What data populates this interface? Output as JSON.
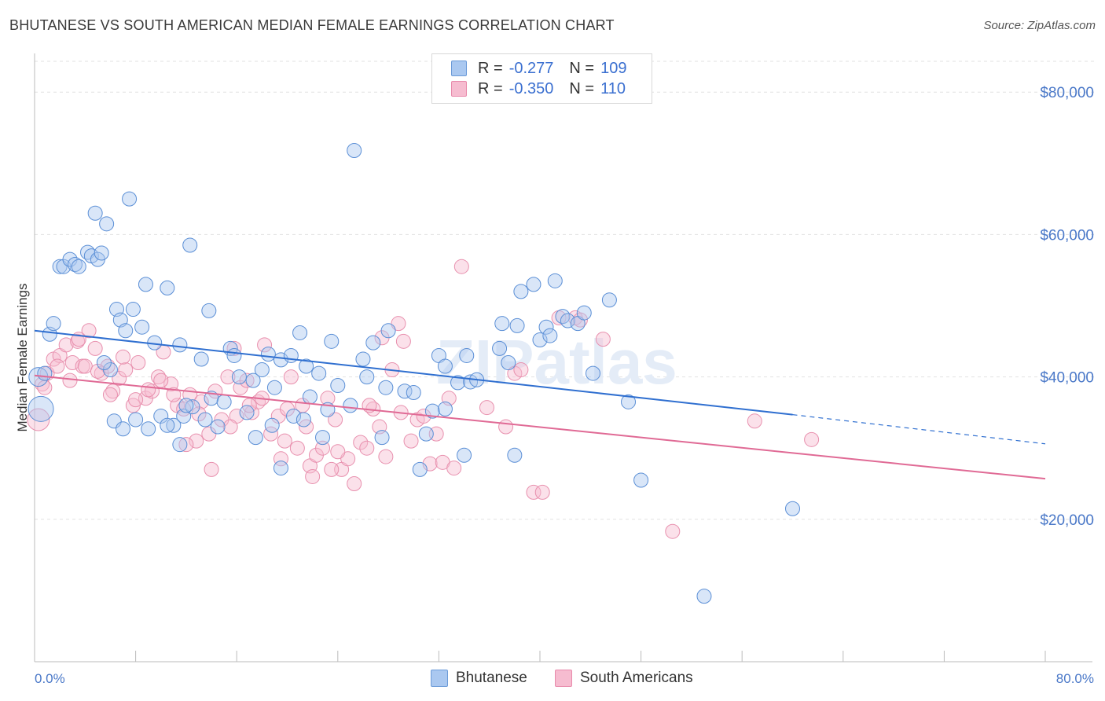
{
  "title": "BHUTANESE VS SOUTH AMERICAN MEDIAN FEMALE EARNINGS CORRELATION CHART",
  "source": "Source: ZipAtlas.com",
  "watermark": "ZIPatlas",
  "legend": {
    "rows": [
      {
        "r_label": "R =",
        "r_value": "-0.277",
        "n_label": "N =",
        "n_value": "109",
        "color": "#aac8f0",
        "border": "#6a9ad8"
      },
      {
        "r_label": "R =",
        "r_value": "-0.350",
        "n_label": "N =",
        "n_value": "110",
        "color": "#f6bcd0",
        "border": "#e88aab"
      }
    ]
  },
  "bottom_legend": [
    "Bhutanese",
    "South Americans"
  ],
  "chart_data": {
    "type": "scatter",
    "title": "BHUTANESE VS SOUTH AMERICAN MEDIAN FEMALE EARNINGS CORRELATION CHART",
    "ylabel": "Median Female Earnings",
    "xlim": [
      0,
      80
    ],
    "ylim": [
      0,
      84000
    ],
    "y_ticks": [
      20000,
      40000,
      60000,
      80000
    ],
    "y_tick_labels": [
      "$20,000",
      "$40,000",
      "$60,000",
      "$80,000"
    ],
    "x_tick_labels": [
      "0.0%",
      "80.0%"
    ],
    "grid": true,
    "series": [
      {
        "name": "Bhutanese",
        "color": "#5b8fd6",
        "fill": "#aac8f0",
        "line_color": "#2f6fd0",
        "trend": {
          "x0": 0,
          "y0": 46500,
          "x1": 60,
          "y1": 34700,
          "dash_to_x": 80,
          "dash_to_y": 30600
        },
        "points": [
          [
            0.3,
            40000
          ],
          [
            0.8,
            40500
          ],
          [
            1.2,
            46000
          ],
          [
            1.5,
            47500
          ],
          [
            2,
            55500
          ],
          [
            2.3,
            55500
          ],
          [
            2.8,
            56500
          ],
          [
            3.2,
            55800
          ],
          [
            3.5,
            55500
          ],
          [
            4.2,
            57500
          ],
          [
            4.5,
            57000
          ],
          [
            5,
            56500
          ],
          [
            5.3,
            57400
          ],
          [
            4.8,
            63000
          ],
          [
            5.7,
            61500
          ],
          [
            7.5,
            65000
          ],
          [
            6.5,
            49500
          ],
          [
            6.8,
            48000
          ],
          [
            7.2,
            46500
          ],
          [
            7.8,
            49500
          ],
          [
            8.5,
            47000
          ],
          [
            8.8,
            53000
          ],
          [
            9.5,
            44800
          ],
          [
            10.5,
            52500
          ],
          [
            11.5,
            44500
          ],
          [
            12.3,
            58500
          ],
          [
            13.2,
            42500
          ],
          [
            13.8,
            49300
          ],
          [
            15.5,
            44000
          ],
          [
            15.8,
            43000
          ],
          [
            16.2,
            40000
          ],
          [
            17.3,
            39500
          ],
          [
            18,
            41000
          ],
          [
            18.5,
            43200
          ],
          [
            19,
            38500
          ],
          [
            19.5,
            42400
          ],
          [
            20.3,
            43000
          ],
          [
            21,
            46200
          ],
          [
            21.5,
            41500
          ],
          [
            22.5,
            40500
          ],
          [
            23.5,
            45000
          ],
          [
            24,
            38800
          ],
          [
            25.3,
            71800
          ],
          [
            26.3,
            40000
          ],
          [
            26.8,
            44800
          ],
          [
            27.8,
            38500
          ],
          [
            29.3,
            38000
          ],
          [
            30,
            37800
          ],
          [
            31.5,
            35200
          ],
          [
            32,
            43000
          ],
          [
            32.5,
            41500
          ],
          [
            33.5,
            39200
          ],
          [
            34.2,
            43000
          ],
          [
            34.5,
            39300
          ],
          [
            35,
            39600
          ],
          [
            36.8,
            44000
          ],
          [
            37,
            47500
          ],
          [
            37.5,
            42000
          ],
          [
            38.2,
            47200
          ],
          [
            38.5,
            52000
          ],
          [
            39.5,
            53000
          ],
          [
            40,
            45200
          ],
          [
            40.5,
            47000
          ],
          [
            40.8,
            45800
          ],
          [
            41.2,
            53500
          ],
          [
            41.8,
            48500
          ],
          [
            42.2,
            47900
          ],
          [
            43,
            47500
          ],
          [
            43.5,
            49000
          ],
          [
            45.5,
            50800
          ],
          [
            44.2,
            40500
          ],
          [
            47,
            36500
          ],
          [
            48,
            25500
          ],
          [
            9,
            32700
          ],
          [
            10,
            34500
          ],
          [
            11,
            33200
          ],
          [
            11.8,
            34500
          ],
          [
            12.5,
            35800
          ],
          [
            13.5,
            34000
          ],
          [
            14,
            37000
          ],
          [
            8,
            34000
          ],
          [
            6,
            41000
          ],
          [
            5.5,
            42000
          ],
          [
            14.5,
            33000
          ],
          [
            15,
            36500
          ],
          [
            16.8,
            35000
          ],
          [
            17.5,
            31500
          ],
          [
            18.8,
            33200
          ],
          [
            19.5,
            27200
          ],
          [
            20.5,
            34500
          ],
          [
            21.3,
            34000
          ],
          [
            21.8,
            37200
          ],
          [
            22.8,
            31500
          ],
          [
            23.2,
            35400
          ],
          [
            25,
            36000
          ],
          [
            27.5,
            31500
          ],
          [
            30.5,
            27000
          ],
          [
            31,
            32000
          ],
          [
            32.5,
            35500
          ],
          [
            34,
            29000
          ],
          [
            38,
            29000
          ],
          [
            10.5,
            33200
          ],
          [
            11.5,
            30500
          ],
          [
            6.3,
            33800
          ],
          [
            7,
            32700
          ],
          [
            0.5,
            35500
          ],
          [
            60,
            21500
          ],
          [
            53,
            9200
          ],
          [
            28,
            46500
          ],
          [
            26,
            42500
          ],
          [
            12,
            36000
          ]
        ],
        "sizes_note": "most markers similar size; one large marker near x=0.3"
      },
      {
        "name": "South Americans",
        "color": "#e890ae",
        "fill": "#f6bcd0",
        "line_color": "#e06a95",
        "trend": {
          "x0": 0,
          "y0": 40200,
          "x1": 80,
          "y1": 25700
        },
        "points": [
          [
            0.3,
            34000
          ],
          [
            0.6,
            39000
          ],
          [
            1,
            40500
          ],
          [
            1.5,
            42500
          ],
          [
            2,
            43000
          ],
          [
            2.5,
            44500
          ],
          [
            3,
            42000
          ],
          [
            3.4,
            45000
          ],
          [
            3.8,
            41500
          ],
          [
            4.3,
            46500
          ],
          [
            4.8,
            44000
          ],
          [
            5.3,
            40500
          ],
          [
            5.8,
            41500
          ],
          [
            6.2,
            38000
          ],
          [
            6.7,
            39800
          ],
          [
            7.2,
            41000
          ],
          [
            7.8,
            36000
          ],
          [
            8.2,
            42000
          ],
          [
            8.8,
            37000
          ],
          [
            9.3,
            38000
          ],
          [
            9.8,
            40000
          ],
          [
            10.2,
            43500
          ],
          [
            10.8,
            39000
          ],
          [
            11.3,
            36000
          ],
          [
            11.8,
            35500
          ],
          [
            12.3,
            37500
          ],
          [
            12.8,
            31000
          ],
          [
            13.2,
            36500
          ],
          [
            13.8,
            32000
          ],
          [
            14.3,
            38000
          ],
          [
            14.8,
            34000
          ],
          [
            15.3,
            40000
          ],
          [
            15.8,
            44000
          ],
          [
            16.3,
            38500
          ],
          [
            16.8,
            39500
          ],
          [
            17.2,
            35000
          ],
          [
            17.7,
            36500
          ],
          [
            18.2,
            44500
          ],
          [
            18.7,
            32000
          ],
          [
            19.3,
            34500
          ],
          [
            19.8,
            31000
          ],
          [
            20.3,
            40000
          ],
          [
            20.8,
            30000
          ],
          [
            21.2,
            36000
          ],
          [
            21.8,
            27500
          ],
          [
            22.3,
            29000
          ],
          [
            22.8,
            30000
          ],
          [
            23.2,
            37000
          ],
          [
            23.8,
            34000
          ],
          [
            24.3,
            27000
          ],
          [
            24.8,
            28500
          ],
          [
            25.3,
            25000
          ],
          [
            25.8,
            30800
          ],
          [
            26.3,
            30000
          ],
          [
            26.8,
            35500
          ],
          [
            27.3,
            33000
          ],
          [
            27.8,
            28800
          ],
          [
            28.3,
            41000
          ],
          [
            28.8,
            47500
          ],
          [
            29.2,
            45000
          ],
          [
            29.8,
            31000
          ],
          [
            30.3,
            34000
          ],
          [
            30.8,
            34500
          ],
          [
            31.3,
            27800
          ],
          [
            31.8,
            32000
          ],
          [
            32.3,
            28000
          ],
          [
            32.8,
            37000
          ],
          [
            33.2,
            27200
          ],
          [
            33.8,
            55500
          ],
          [
            12,
            30500
          ],
          [
            14,
            27000
          ],
          [
            16,
            34500
          ],
          [
            18,
            37000
          ],
          [
            20,
            35500
          ],
          [
            22,
            26000
          ],
          [
            24,
            29500
          ],
          [
            10,
            39500
          ],
          [
            8,
            36800
          ],
          [
            6,
            37500
          ],
          [
            4,
            41500
          ],
          [
            2.8,
            39500
          ],
          [
            38,
            40500
          ],
          [
            38.5,
            41000
          ],
          [
            39.5,
            23800
          ],
          [
            40.2,
            23800
          ],
          [
            42.8,
            48300
          ],
          [
            43.2,
            48000
          ],
          [
            45,
            45300
          ],
          [
            41.5,
            48300
          ],
          [
            50.5,
            18300
          ],
          [
            57,
            33800
          ],
          [
            61.5,
            31200
          ],
          [
            27.5,
            45500
          ],
          [
            26.5,
            36000
          ],
          [
            29,
            35000
          ],
          [
            19.5,
            28500
          ],
          [
            23.5,
            27000
          ],
          [
            21.5,
            33000
          ],
          [
            15.5,
            33000
          ],
          [
            17,
            36000
          ],
          [
            11,
            37500
          ],
          [
            13,
            34800
          ],
          [
            9,
            38200
          ],
          [
            7,
            42800
          ],
          [
            5,
            40800
          ],
          [
            3.5,
            45300
          ],
          [
            1.8,
            41500
          ],
          [
            0.8,
            38500
          ],
          [
            35.8,
            35700
          ],
          [
            37.3,
            33000
          ]
        ]
      }
    ]
  }
}
